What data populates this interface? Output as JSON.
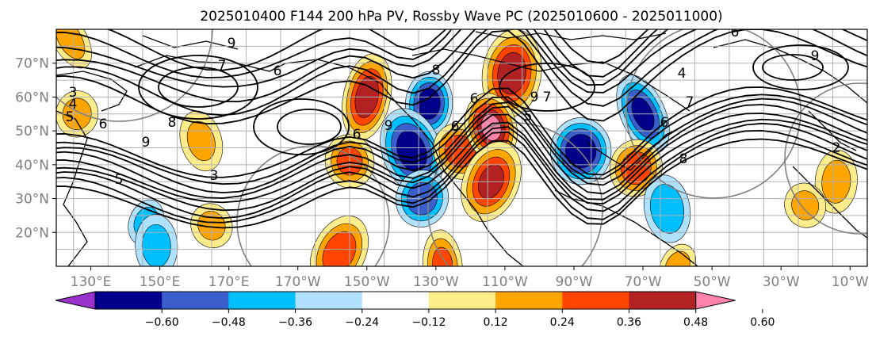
{
  "chart_data": {
    "type": "heatmap",
    "title": "2025010400 F144 200 hPa PV, Rossby Wave PC (2025010600 - 2025011000)",
    "lon_range": [
      120,
      355
    ],
    "lat_range": [
      10,
      80
    ],
    "lon_ticks": [
      {
        "lon": 130,
        "label": "130°E"
      },
      {
        "lon": 150,
        "label": "150°E"
      },
      {
        "lon": 170,
        "label": "170°E"
      },
      {
        "lon": 190,
        "label": "170°W"
      },
      {
        "lon": 210,
        "label": "150°W"
      },
      {
        "lon": 230,
        "label": "130°W"
      },
      {
        "lon": 250,
        "label": "110°W"
      },
      {
        "lon": 270,
        "label": "90°W"
      },
      {
        "lon": 290,
        "label": "70°W"
      },
      {
        "lon": 310,
        "label": "50°W"
      },
      {
        "lon": 330,
        "label": "30°W"
      },
      {
        "lon": 350,
        "label": "10°W"
      }
    ],
    "lat_ticks": [
      {
        "lat": 20,
        "label": "20°N"
      },
      {
        "lat": 30,
        "label": "30°N"
      },
      {
        "lat": 40,
        "label": "40°N"
      },
      {
        "lat": 50,
        "label": "50°N"
      },
      {
        "lat": 60,
        "label": "60°N"
      },
      {
        "lat": 70,
        "label": "70°N"
      }
    ],
    "colorbar": {
      "levels": [
        -0.6,
        -0.48,
        -0.36,
        -0.24,
        -0.12,
        0.12,
        0.24,
        0.36,
        0.48,
        0.6
      ],
      "tick_labels": [
        "−0.60",
        "−0.48",
        "−0.36",
        "−0.24",
        "−0.12",
        "0.12",
        "0.24",
        "0.36",
        "0.48",
        "0.60"
      ],
      "colors": [
        "#9932cc",
        "#00008b",
        "#3a5fcd",
        "#00bfff",
        "#b0e2ff",
        "#ffffff",
        "#ffec8b",
        "#ffa500",
        "#ff4500",
        "#b22222",
        "#ff82ab"
      ],
      "extend": "both"
    },
    "anomalies": [
      {
        "lon": 124,
        "lat": 77,
        "value": 0.3
      },
      {
        "lon": 126,
        "lat": 55,
        "value": 0.3
      },
      {
        "lon": 162,
        "lat": 47,
        "value": 0.28
      },
      {
        "lon": 146,
        "lat": 23,
        "value": -0.3
      },
      {
        "lon": 149,
        "lat": 16,
        "value": -0.3
      },
      {
        "lon": 165,
        "lat": 22,
        "value": 0.28
      },
      {
        "lon": 210,
        "lat": 60,
        "value": 0.55
      },
      {
        "lon": 205,
        "lat": 41,
        "value": 0.4
      },
      {
        "lon": 202,
        "lat": 14,
        "value": 0.45
      },
      {
        "lon": 228,
        "lat": 58,
        "value": -0.55
      },
      {
        "lon": 223,
        "lat": 44,
        "value": -0.55
      },
      {
        "lon": 226,
        "lat": 30,
        "value": -0.45
      },
      {
        "lon": 232,
        "lat": 10,
        "value": 0.4
      },
      {
        "lon": 237,
        "lat": 44,
        "value": 0.45
      },
      {
        "lon": 252,
        "lat": 67,
        "value": 0.55
      },
      {
        "lon": 246,
        "lat": 51,
        "value": 0.62
      },
      {
        "lon": 246,
        "lat": 35,
        "value": 0.5
      },
      {
        "lon": 272,
        "lat": 44,
        "value": -0.58
      },
      {
        "lon": 290,
        "lat": 55,
        "value": -0.5
      },
      {
        "lon": 288,
        "lat": 39,
        "value": 0.45
      },
      {
        "lon": 297,
        "lat": 27,
        "value": -0.35
      },
      {
        "lon": 300,
        "lat": 10,
        "value": 0.3
      },
      {
        "lon": 346,
        "lat": 35,
        "value": 0.3
      },
      {
        "lon": 337,
        "lat": 28,
        "value": 0.28
      }
    ],
    "contour_labels": [
      "9",
      "3",
      "4",
      "5",
      "6",
      "8",
      "9",
      "7",
      "6",
      "8",
      "6",
      "5",
      "9",
      "6",
      "4",
      "9",
      "6",
      "7",
      "7",
      "6",
      "2",
      "8",
      "9",
      "5",
      "3",
      "6"
    ]
  }
}
